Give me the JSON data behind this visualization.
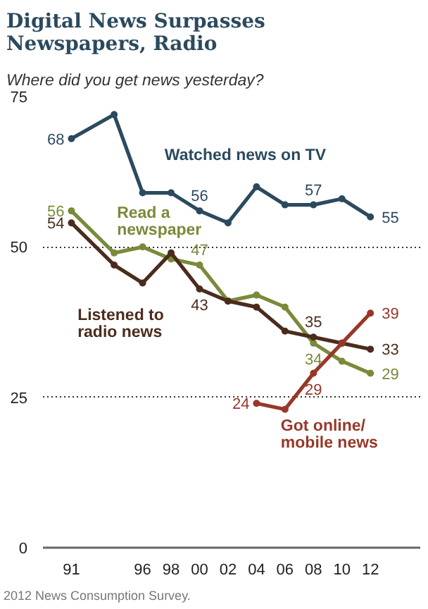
{
  "chart_data": {
    "type": "line",
    "title": "Digital News Surpasses Newspapers, Radio",
    "subtitle": "Where did you get news yesterday?",
    "annotations": [
      "2012 News Consumption Survey."
    ],
    "x": [
      1991,
      1994,
      1996,
      1998,
      2000,
      2002,
      2004,
      2006,
      2008,
      2010,
      2012
    ],
    "xlim": [
      1989,
      2015.5
    ],
    "xticks": [
      {
        "value": 1991,
        "label": "91"
      },
      {
        "value": 1996,
        "label": "96"
      },
      {
        "value": 1998,
        "label": "98"
      },
      {
        "value": 2000,
        "label": "00"
      },
      {
        "value": 2002,
        "label": "02"
      },
      {
        "value": 2004,
        "label": "04"
      },
      {
        "value": 2006,
        "label": "06"
      },
      {
        "value": 2008,
        "label": "08"
      },
      {
        "value": 2010,
        "label": "10"
      },
      {
        "value": 2012,
        "label": "12"
      }
    ],
    "ylim": [
      0,
      75
    ],
    "yticks": [
      0,
      25,
      50,
      75
    ],
    "grid": "y",
    "marker": "circle",
    "line_style": "solid",
    "series": [
      {
        "name": "Watched news on TV",
        "color": "#2c4a5e",
        "values": [
          68,
          72,
          59,
          59,
          56,
          54,
          60,
          57,
          57,
          58,
          55
        ],
        "value_labels": [
          "68",
          null,
          null,
          null,
          "56",
          null,
          null,
          null,
          "57",
          null,
          "55"
        ]
      },
      {
        "name": "Read a newspaper",
        "color": "#7a8a3a",
        "values": [
          56,
          49,
          50,
          48,
          47,
          41,
          42,
          40,
          34,
          31,
          29
        ],
        "value_labels": [
          "56",
          null,
          null,
          null,
          "47",
          null,
          null,
          null,
          "34",
          null,
          "29"
        ]
      },
      {
        "name": "Listened to radio news",
        "color": "#4b2c1c",
        "values": [
          54,
          47,
          44,
          49,
          43,
          41,
          40,
          36,
          35,
          34,
          33
        ],
        "value_labels": [
          "54",
          null,
          null,
          null,
          "43",
          null,
          null,
          null,
          "35",
          null,
          "33"
        ]
      },
      {
        "name": "Got online/ mobile news",
        "color": "#973829",
        "values": [
          null,
          null,
          null,
          null,
          null,
          null,
          24,
          23,
          29,
          34,
          39
        ],
        "value_labels": [
          null,
          null,
          null,
          null,
          null,
          null,
          "24",
          null,
          "29",
          null,
          "39"
        ]
      }
    ]
  }
}
